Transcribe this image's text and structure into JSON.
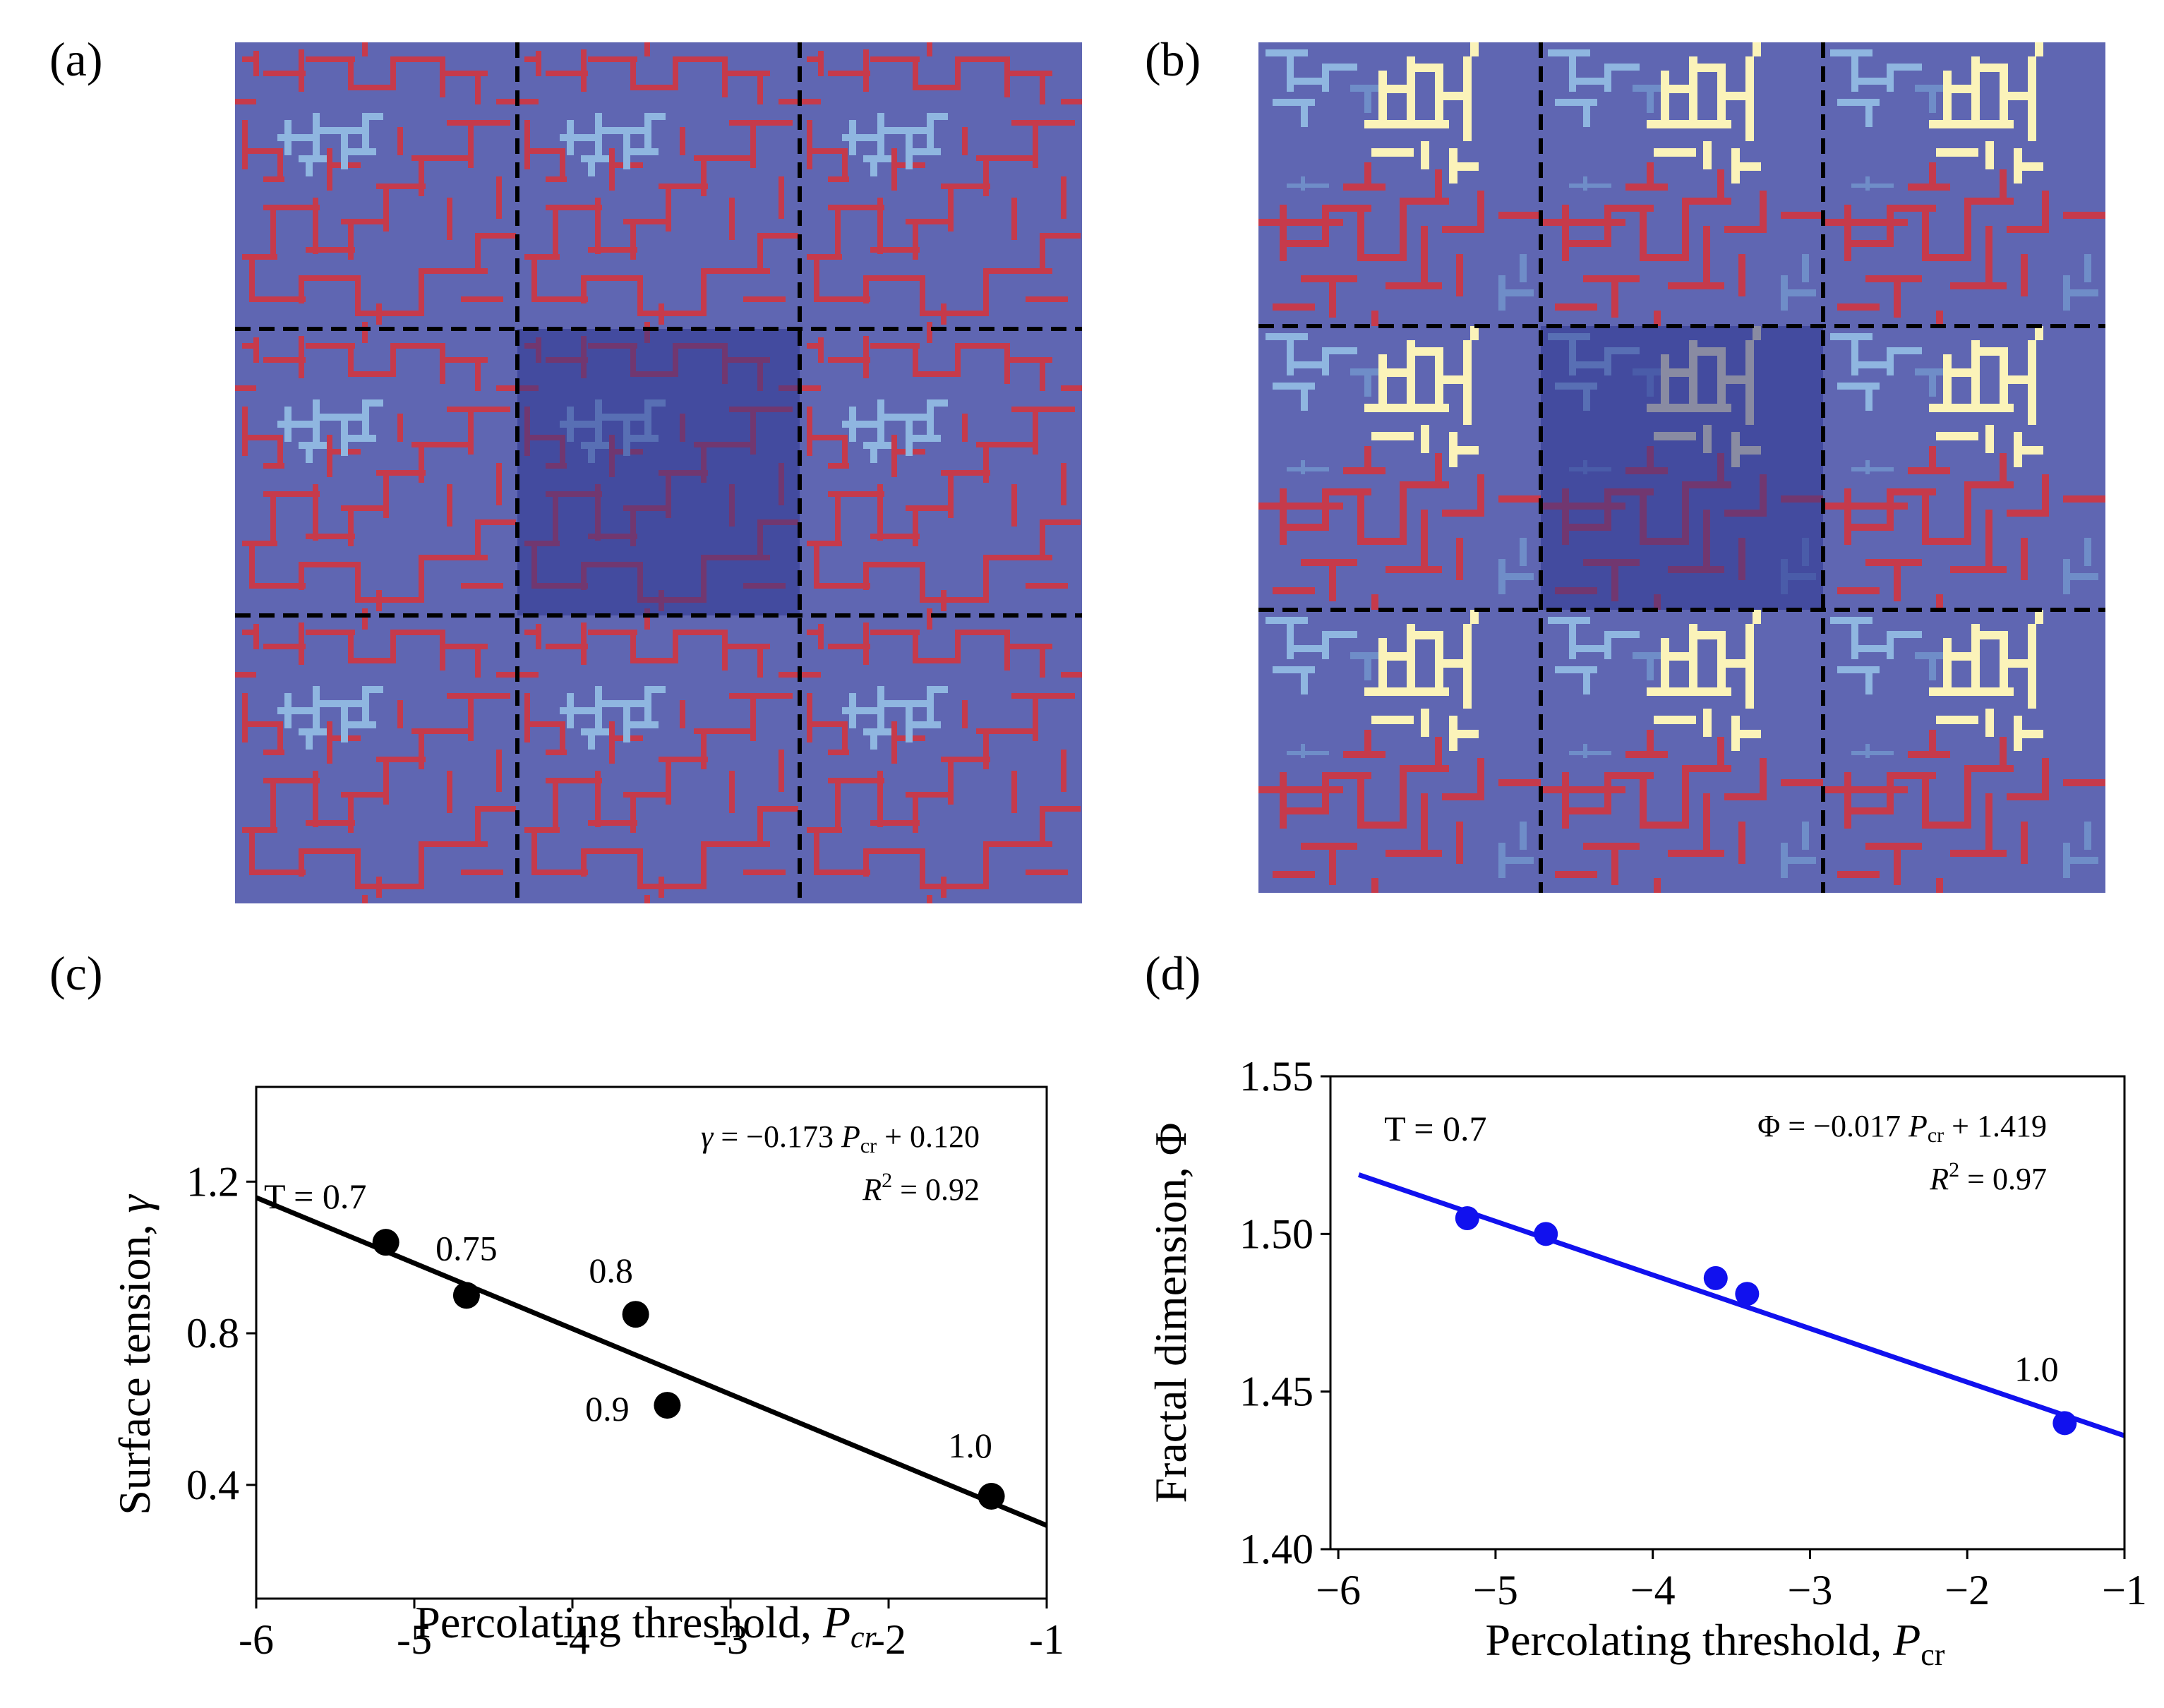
{
  "panels": {
    "a": {
      "label": "(a)"
    },
    "b": {
      "label": "(b)"
    },
    "c": {
      "label": "(c)"
    },
    "d": {
      "label": "(d)"
    }
  },
  "colors": {
    "lattice_background": "#5f66b2",
    "lattice_center": "#2c3590",
    "cluster_red": "#c63a4b",
    "cluster_red_dark": "#a0102e",
    "cluster_light_blue": "#8fb6e0",
    "cluster_steel_blue": "#6f8dc8",
    "cluster_cream": "#fbf3b9",
    "grid_line": "#000000",
    "fit_c": "#000000",
    "fit_d": "#1111ee",
    "points_c": "#000000",
    "points_d": "#1111ee"
  },
  "chart_data": [
    {
      "panel": "c",
      "type": "scatter",
      "xlabel": "Percolating threshold, ",
      "xlabel_symbol": "P",
      "xlabel_sub": "cr",
      "ylabel": "Surface tension, ",
      "ylabel_symbol": "γ",
      "xlim": [
        -6,
        -1
      ],
      "ylim": [
        0.1,
        1.45
      ],
      "xticks": [
        -6,
        -5,
        -4,
        -3,
        -2,
        -1
      ],
      "xtick_labels": [
        "-6",
        "-5",
        "-4",
        "-3",
        "-2",
        "-1"
      ],
      "yticks": [
        0.4,
        0.8,
        1.2
      ],
      "ytick_labels": [
        "0.4",
        "0.8",
        "1.2"
      ],
      "points": [
        {
          "x": -5.18,
          "y": 1.04,
          "label": "T = 0.7"
        },
        {
          "x": -4.67,
          "y": 0.9,
          "label": "0.75"
        },
        {
          "x": -3.6,
          "y": 0.85,
          "label": "0.8"
        },
        {
          "x": -3.4,
          "y": 0.61,
          "label": "0.9"
        },
        {
          "x": -1.35,
          "y": 0.37,
          "label": "1.0"
        }
      ],
      "fit": {
        "slope": -0.173,
        "intercept": 0.12,
        "x_range": [
          -6,
          -1
        ]
      },
      "equation": {
        "lhs": "γ",
        "rhs_coef": " = −0.173 ",
        "rhs_var": "P",
        "rhs_sub": "cr",
        "rhs_tail": " + 0.120"
      },
      "r_squared": {
        "lhs": "R",
        "sup": "2",
        "rhs": " = 0.92"
      }
    },
    {
      "panel": "d",
      "type": "scatter",
      "xlabel": "Percolating threshold, ",
      "xlabel_symbol": "P",
      "xlabel_sub": "cr",
      "ylabel": "Fractal dimension, Φ",
      "xlim": [
        -6.05,
        -1
      ],
      "ylim": [
        1.4,
        1.55
      ],
      "xticks": [
        -6,
        -5,
        -4,
        -3,
        -2,
        -1
      ],
      "xtick_labels": [
        "−6",
        "−5",
        "−4",
        "−3",
        "−2",
        "−1"
      ],
      "yticks": [
        1.4,
        1.45,
        1.5,
        1.55
      ],
      "ytick_labels": [
        "1.40",
        "1.45",
        "1.50",
        "1.55"
      ],
      "points": [
        {
          "x": -5.18,
          "y": 1.505,
          "label": "T = 0.7"
        },
        {
          "x": -4.68,
          "y": 1.5,
          "label": ""
        },
        {
          "x": -3.6,
          "y": 1.486,
          "label": ""
        },
        {
          "x": -3.4,
          "y": 1.481,
          "label": ""
        },
        {
          "x": -1.38,
          "y": 1.44,
          "label": "1.0"
        }
      ],
      "fit": {
        "slope": -0.017,
        "intercept": 1.419,
        "x_range": [
          -5.87,
          -1
        ]
      },
      "equation": {
        "lhs": "Φ",
        "rhs_coef": " = −0.017 ",
        "rhs_var": "P",
        "rhs_sub": "cr",
        "rhs_tail": " + 1.419"
      },
      "r_squared": {
        "lhs": "R",
        "sup": "2",
        "rhs": " = 0.97"
      }
    }
  ]
}
